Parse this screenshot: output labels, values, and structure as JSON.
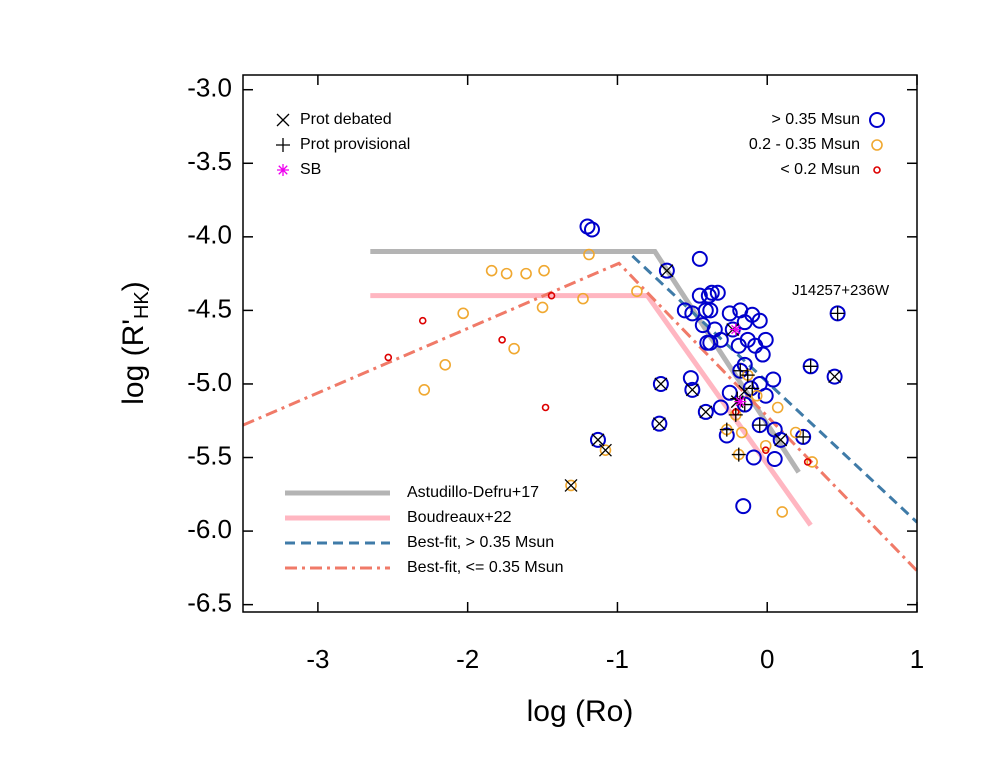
{
  "chart_data": {
    "type": "scatter",
    "x_label": "log (Ro)",
    "y_label": {
      "main": "log (R'",
      "sub": "HK",
      "end": ")"
    },
    "xlim": [
      -3.5,
      1
    ],
    "ylim": [
      -6.55,
      -2.9
    ],
    "xticks": [
      -3,
      -2,
      -1,
      0,
      1
    ],
    "yticks": [
      {
        "value": -3.0,
        "label": "-3.0"
      },
      {
        "value": -3.5,
        "label": "-3.5"
      },
      {
        "value": -4.0,
        "label": "-4.0"
      },
      {
        "value": -4.5,
        "label": "-4.5"
      },
      {
        "value": -5.0,
        "label": "-5.0"
      },
      {
        "value": -5.5,
        "label": "-5.5"
      },
      {
        "value": -6.0,
        "label": "-6.0"
      },
      {
        "value": -6.5,
        "label": "-6.5"
      }
    ],
    "annotations": [
      {
        "text": "J14257+236W",
        "x": 0.49,
        "y": -4.37
      }
    ],
    "series": [
      {
        "name": "> 0.35 Msun",
        "color": "#0000cc",
        "marker": "circle",
        "size": 7,
        "legend": "upper right",
        "x": [
          -1.2,
          -1.17,
          -0.67,
          -0.45,
          -0.55,
          -0.5,
          -0.45,
          -0.39,
          -0.37,
          -0.33,
          -0.41,
          -0.38,
          -0.43,
          -0.35,
          -0.38,
          -0.4,
          -0.31,
          -0.25,
          -0.18,
          -0.15,
          -0.1,
          -0.05,
          -0.23,
          -0.19,
          -0.13,
          -0.08,
          -0.01,
          -0.03,
          -0.15,
          -0.18,
          -0.05,
          0.04,
          -0.01,
          -0.11,
          -0.25,
          -0.31,
          -0.27,
          -0.09,
          0.05,
          -0.16,
          -0.71,
          -0.72,
          -1.13,
          -0.51,
          -0.5,
          -0.41,
          0.29,
          0.45,
          0.47,
          0.24,
          0.09,
          0.05,
          -0.05,
          -0.15
        ],
        "values": [
          -3.93,
          -3.95,
          -4.23,
          -4.15,
          -4.5,
          -4.52,
          -4.4,
          -4.4,
          -4.38,
          -4.38,
          -4.5,
          -4.5,
          -4.6,
          -4.63,
          -4.72,
          -4.72,
          -4.7,
          -4.52,
          -4.5,
          -4.58,
          -4.53,
          -4.57,
          -4.63,
          -4.74,
          -4.7,
          -4.74,
          -4.7,
          -4.8,
          -4.87,
          -4.91,
          -5.0,
          -4.97,
          -5.08,
          -5.03,
          -5.06,
          -5.16,
          -5.35,
          -5.5,
          -5.51,
          -5.83,
          -5.0,
          -5.27,
          -5.38,
          -4.96,
          -5.04,
          -5.19,
          -4.88,
          -4.95,
          -4.52,
          -5.36,
          -5.38,
          -5.31,
          -5.28,
          -5.14
        ]
      },
      {
        "name": "0.2 - 0.35 Msun",
        "color": "#f0a830",
        "marker": "circle",
        "size": 5,
        "legend": "upper right",
        "x": [
          -1.84,
          -1.74,
          -1.61,
          -1.49,
          -1.19,
          -2.03,
          -1.5,
          -1.23,
          -0.87,
          -1.69,
          -2.15,
          -2.29,
          -1.08,
          -1.31,
          -0.19,
          0.1,
          0.3,
          0.19,
          0.07,
          -0.17,
          -0.07,
          -0.01,
          -0.21,
          -0.13,
          -0.27
        ],
        "values": [
          -4.23,
          -4.25,
          -4.25,
          -4.23,
          -4.12,
          -4.52,
          -4.48,
          -4.42,
          -4.37,
          -4.76,
          -4.87,
          -5.04,
          -5.45,
          -5.69,
          -5.48,
          -5.87,
          -5.53,
          -5.33,
          -5.16,
          -5.33,
          -5.08,
          -5.42,
          -5.21,
          -4.94,
          -5.31
        ]
      },
      {
        "name": "< 0.2 Msun",
        "color": "#dd0000",
        "marker": "circle",
        "size": 3,
        "legend": "upper right",
        "x": [
          -2.3,
          -2.53,
          -1.77,
          -1.44,
          -1.48,
          0.27,
          -0.01,
          -0.21
        ],
        "values": [
          -4.57,
          -4.82,
          -4.7,
          -4.4,
          -5.16,
          -5.53,
          -5.45,
          -5.19
        ]
      },
      {
        "name": "Prot debated",
        "color": "#000000",
        "marker": "x-cross",
        "size": 6,
        "legend": "upper left",
        "x": [
          -0.67,
          -0.71,
          -0.72,
          -1.13,
          -0.5,
          -0.41,
          0.45,
          0.09,
          -1.08,
          -1.31,
          -0.15,
          -0.2,
          -0.23
        ],
        "values": [
          -4.23,
          -5.0,
          -5.27,
          -5.38,
          -5.04,
          -5.19,
          -4.95,
          -5.38,
          -5.45,
          -5.69,
          -5.05,
          -5.12,
          -4.63
        ]
      },
      {
        "name": "Prot provisional",
        "color": "#000000",
        "marker": "plus",
        "size": 7,
        "legend": "upper left",
        "x": [
          0.29,
          0.47,
          0.24,
          -0.05,
          -0.15,
          -0.19,
          -0.1,
          -0.18,
          -0.13,
          -0.27,
          -0.21,
          -0.2
        ],
        "values": [
          -4.88,
          -4.52,
          -5.36,
          -5.28,
          -5.14,
          -5.48,
          -5.03,
          -4.91,
          -4.94,
          -5.31,
          -5.21,
          -5.1
        ]
      },
      {
        "name": "SB",
        "color": "#ee00ee",
        "marker": "asterisk",
        "size": 6,
        "legend": "upper left",
        "x": [
          -0.21,
          -0.18
        ],
        "values": [
          -4.63,
          -5.12
        ]
      },
      {
        "name": "Astudillo-Defru+17",
        "color": "#b4b4b4",
        "marker": "line",
        "style": "solid",
        "width": 5,
        "legend": "lower left",
        "x": [
          -2.65,
          -0.75,
          0.21
        ],
        "values": [
          -4.1,
          -4.1,
          -5.6
        ]
      },
      {
        "name": "Boudreaux+22",
        "color": "#ffb6c1",
        "marker": "line",
        "style": "solid",
        "width": 5,
        "legend": "lower left",
        "x": [
          -2.65,
          -0.8,
          0.29
        ],
        "values": [
          -4.4,
          -4.4,
          -5.96
        ]
      },
      {
        "name": "Best-fit, > 0.35 Msun",
        "color": "#3f7ba8",
        "marker": "line",
        "style": "dashed",
        "width": 3,
        "legend": "lower left",
        "x": [
          -0.9,
          1
        ],
        "values": [
          -4.13,
          -5.94
        ]
      },
      {
        "name": "Best-fit, <= 0.35 Msun",
        "color": "#f07a68",
        "marker": "line",
        "style": "dashdot",
        "width": 3,
        "legend": "lower left",
        "x": [
          -3.5,
          -0.99,
          1
        ],
        "values": [
          -5.28,
          -4.18,
          -6.27
        ]
      }
    ]
  }
}
